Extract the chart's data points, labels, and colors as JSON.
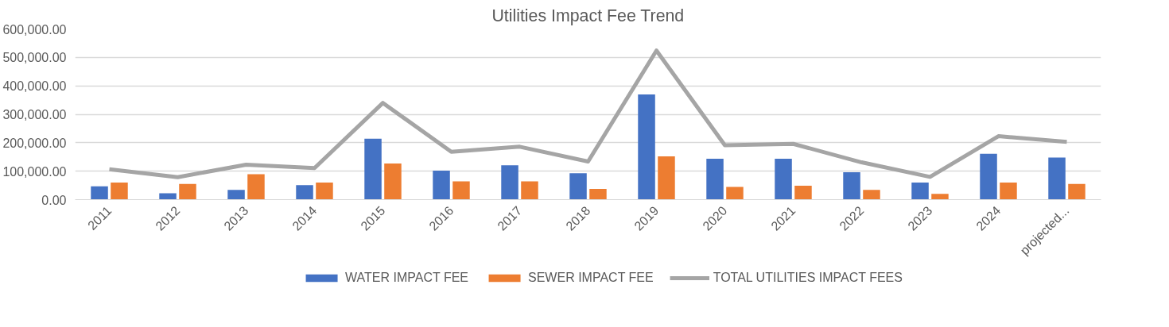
{
  "chart_data": {
    "type": "bar",
    "title": "Utilities Impact Fee Trend",
    "categories": [
      "2011",
      "2012",
      "2013",
      "2014",
      "2015",
      "2016",
      "2017",
      "2018",
      "2019",
      "2020",
      "2021",
      "2022",
      "2023",
      "2024",
      "projected..."
    ],
    "series": [
      {
        "name": "WATER IMPACT FEE",
        "color": "#4472c4",
        "values": [
          47000,
          22000,
          34000,
          51000,
          214000,
          102000,
          121000,
          93000,
          370000,
          144000,
          144000,
          96000,
          60000,
          161000,
          148000
        ]
      },
      {
        "name": "SEWER IMPACT FEE",
        "color": "#ed7d31",
        "values": [
          60000,
          55000,
          89000,
          60000,
          127000,
          64000,
          64000,
          38000,
          152000,
          45000,
          49000,
          34000,
          20000,
          60000,
          55000
        ]
      },
      {
        "name": "TOTAL UTILITIES IMPACT FEES",
        "color": "#a5a5a5",
        "type": "line",
        "values": [
          107000,
          79000,
          123000,
          111000,
          340000,
          168000,
          186000,
          134000,
          524000,
          191000,
          196000,
          131000,
          80000,
          223000,
          203000
        ]
      }
    ],
    "ylim": [
      0,
      600000
    ],
    "yticks": [
      {
        "value": 0,
        "label": "0.00"
      },
      {
        "value": 100000,
        "label": "100,000.00"
      },
      {
        "value": 200000,
        "label": "200,000.00"
      },
      {
        "value": 300000,
        "label": "300,000.00"
      },
      {
        "value": 400000,
        "label": "400,000.00"
      },
      {
        "value": 500000,
        "label": "500,000.00"
      },
      {
        "value": 600000,
        "label": "600,000.00"
      }
    ],
    "grid": "y",
    "legend": "bottom",
    "marker": "none"
  }
}
